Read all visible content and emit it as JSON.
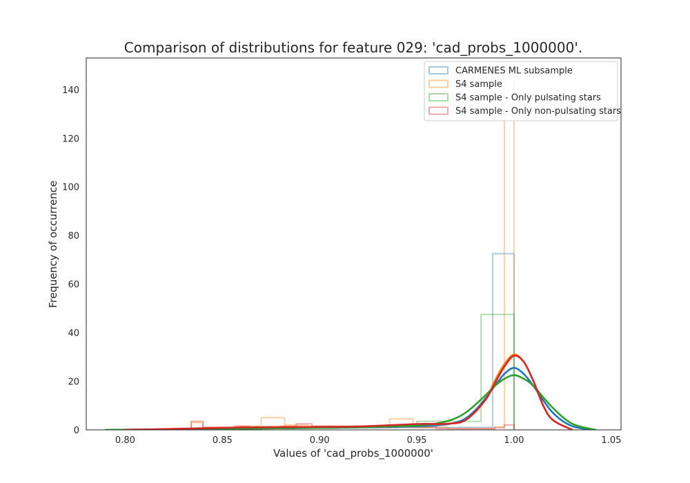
{
  "chart_data": {
    "type": "histogram",
    "title": "Comparison of distributions for feature 029: 'cad_probs_1000000'.",
    "xlabel": "Values of 'cad_probs_1000000'",
    "ylabel": "Frequency of occurrence",
    "xlim": [
      0.78,
      1.055
    ],
    "ylim": [
      0,
      153
    ],
    "xticks": [
      0.8,
      0.85,
      0.9,
      0.95,
      1.0,
      1.05
    ],
    "xtick_labels": [
      "0.80",
      "0.85",
      "0.90",
      "0.95",
      "1.00",
      "1.05"
    ],
    "yticks": [
      0,
      20,
      40,
      60,
      80,
      100,
      120,
      140
    ],
    "ytick_labels": [
      "0",
      "20",
      "40",
      "60",
      "80",
      "100",
      "120",
      "140"
    ],
    "grid": false,
    "legend_position": "top-right",
    "series": [
      {
        "name": "CARMENES ML subsample",
        "color": "#1f77b4",
        "histogram": {
          "edges": [
            0.8,
            0.81,
            0.82,
            0.83,
            0.84,
            0.85,
            0.86,
            0.87,
            0.88,
            0.89,
            0.9,
            0.91,
            0.92,
            0.93,
            0.94,
            0.95,
            0.96,
            0.97,
            0.98,
            0.989,
            1.0
          ],
          "values": [
            0,
            0,
            0,
            0.5,
            0.5,
            0.8,
            0.8,
            1,
            1,
            0.8,
            0.8,
            0.8,
            1,
            1,
            1.2,
            1.2,
            1,
            1,
            1,
            72.5
          ]
        },
        "kde": {
          "x": [
            0.79,
            0.83,
            0.87,
            0.91,
            0.95,
            0.97,
            0.98,
            0.99,
            0.995,
            1.0,
            1.005,
            1.01,
            1.02,
            1.03,
            1.042
          ],
          "y": [
            0,
            0.3,
            0.6,
            0.9,
            1.5,
            3,
            8,
            18,
            23,
            25.5,
            23,
            18,
            7,
            1.5,
            0
          ]
        }
      },
      {
        "name": "S4 sample",
        "color": "#ff7f0e",
        "histogram": {
          "edges": [
            0.834,
            0.84,
            0.846,
            0.852,
            0.858,
            0.864,
            0.87,
            0.876,
            0.882,
            0.888,
            0.894,
            0.9,
            0.906,
            0.912,
            0.918,
            0.924,
            0.93,
            0.936,
            0.942,
            0.948,
            0.954,
            0.96,
            0.966,
            0.972,
            0.978,
            0.984,
            0.99,
            0.995,
            1.0
          ],
          "values": [
            3,
            1,
            1,
            1,
            1.5,
            1.5,
            5,
            5,
            2,
            2,
            1.5,
            1.5,
            1,
            1,
            1,
            1,
            1,
            4.5,
            4.5,
            1,
            1,
            1,
            0.5,
            0.5,
            0.5,
            0.5,
            1,
            150
          ]
        },
        "kde": {
          "x": [
            0.825,
            0.85,
            0.875,
            0.9,
            0.925,
            0.95,
            0.965,
            0.975,
            0.985,
            0.99,
            0.995,
            1.0,
            1.005,
            1.01,
            1.015,
            1.02,
            1.03
          ],
          "y": [
            0,
            0.8,
            1.2,
            1.2,
            1.5,
            2.2,
            2.5,
            4,
            12,
            20,
            27,
            31,
            28,
            20,
            10,
            4,
            0
          ]
        }
      },
      {
        "name": "S4 sample - Only pulsating stars",
        "color": "#2ca02c",
        "histogram": {
          "edges": [
            0.79,
            0.81,
            0.83,
            0.85,
            0.87,
            0.89,
            0.91,
            0.93,
            0.95,
            0.965,
            0.983,
            1.0
          ],
          "values": [
            0,
            0,
            0.5,
            0.5,
            1,
            1,
            1,
            1.5,
            3.5,
            3.5,
            47.5
          ]
        },
        "kde": {
          "x": [
            0.79,
            0.83,
            0.87,
            0.91,
            0.95,
            0.965,
            0.975,
            0.985,
            0.99,
            0.995,
            1.0,
            1.005,
            1.01,
            1.02,
            1.03,
            1.042
          ],
          "y": [
            0,
            0.3,
            0.6,
            0.9,
            1.8,
            3.5,
            7,
            14,
            18,
            21,
            22.5,
            21,
            18,
            9,
            2.5,
            0
          ]
        }
      },
      {
        "name": "S4 sample - Only non-pulsating stars",
        "color": "#d62728",
        "histogram": {
          "edges": [
            0.834,
            0.84,
            0.848,
            0.856,
            0.864,
            0.872,
            0.88,
            0.888,
            0.896,
            0.904,
            0.912,
            0.92,
            0.93,
            0.94,
            0.95,
            0.96,
            0.97,
            0.98,
            0.99,
            0.995,
            1.0
          ],
          "values": [
            3.5,
            1,
            1,
            1.5,
            1,
            1,
            1.5,
            2.5,
            1.5,
            1.5,
            1,
            1,
            1,
            1,
            1,
            0.5,
            0.5,
            0.5,
            1,
            2
          ]
        },
        "kde": {
          "x": [
            0.8,
            0.83,
            0.86,
            0.89,
            0.92,
            0.95,
            0.965,
            0.975,
            0.985,
            0.99,
            0.995,
            1.0,
            1.005,
            1.01,
            1.015,
            1.02,
            1.03
          ],
          "y": [
            0,
            0.5,
            1,
            1.2,
            1.4,
            2.4,
            2.5,
            4,
            12,
            19,
            26,
            30.5,
            28,
            20,
            10,
            4,
            0
          ]
        }
      }
    ]
  }
}
